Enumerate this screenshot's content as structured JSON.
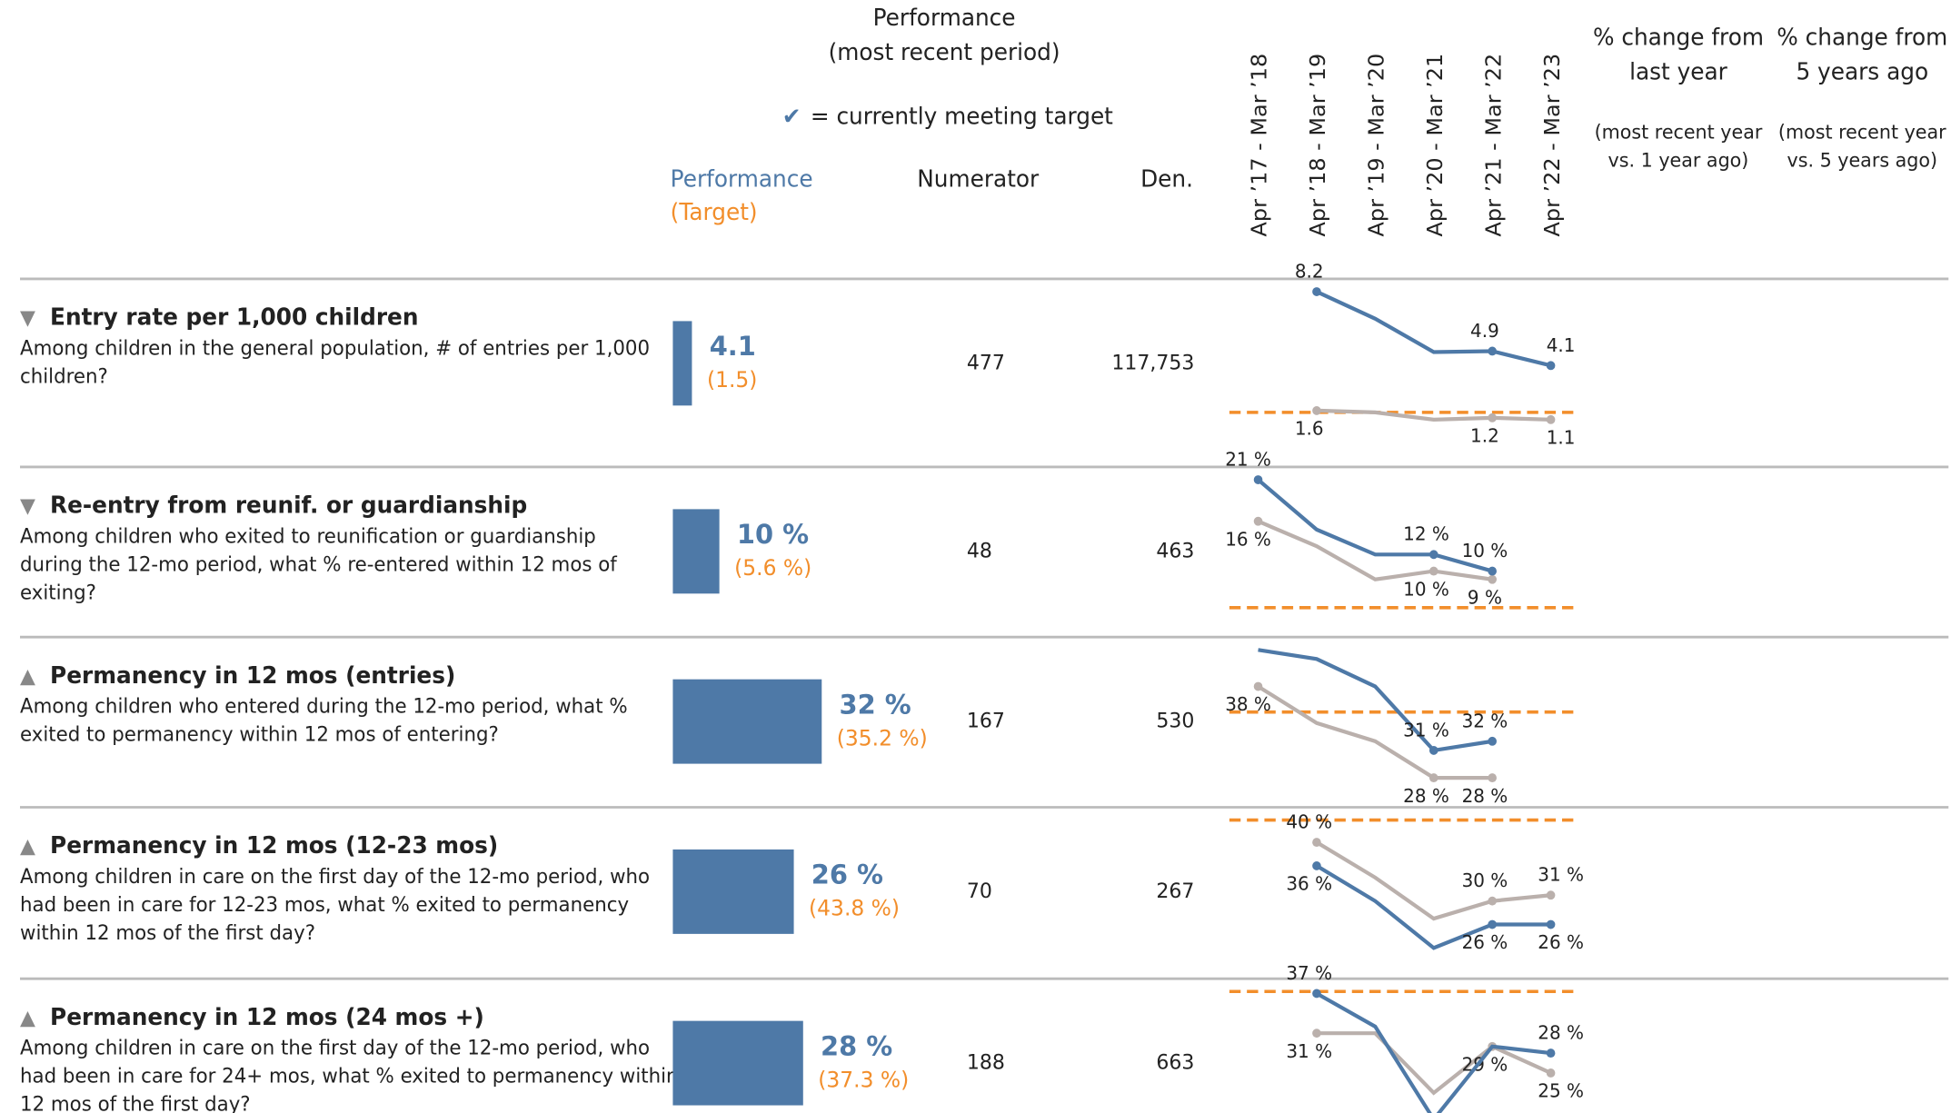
{
  "header": {
    "performance_header": [
      "Performance",
      "(most recent period)"
    ],
    "check_mark": "✔",
    "check_legend": "= currently meeting target",
    "col_performance": "Performance",
    "col_target": "(Target)",
    "col_numerator": "Numerator",
    "col_denominator": "Den.",
    "periods": [
      "Apr ’17 - Mar ’18",
      "Apr ’18 - Mar ’19",
      "Apr ’19 - Mar ’20",
      "Apr ’20 - Mar ’21",
      "Apr ’21 - Mar ’22",
      "Apr ’22 - Mar ’23"
    ],
    "change_last_year": [
      "% change from",
      "last year"
    ],
    "change_last_year_note": [
      "(most recent year",
      "vs. 1 year ago)"
    ],
    "change_5yr": [
      "% change from",
      "5 years ago"
    ],
    "change_5yr_note": [
      "(most recent year",
      "vs. 5 years ago)"
    ]
  },
  "colors": {
    "performance": "#4e79a7",
    "target": "#f28e2b",
    "comparison": "#bab0ac"
  },
  "rows": [
    {
      "direction": "▼",
      "title": "Entry rate per 1,000 children",
      "description": [
        "Among children in the general population, # of entries per 1,000",
        "children?"
      ],
      "performance": 4.1,
      "target": {
        "value": 1.5,
        "label": "(1.5)"
      },
      "numerator": 477,
      "denominator": {
        "value": 117753,
        "label": "117,753"
      },
      "trend": [
        {
          "values": [
            null,
            8.2,
            6.7,
            4.85,
            4.9,
            4.1
          ],
          "value_labels": [
            null,
            "8.2",
            null,
            null,
            "4.9",
            "4.1"
          ]
        },
        {
          "values": [
            null,
            1.6,
            1.5,
            1.1,
            1.2,
            1.1
          ],
          "value_labels": [
            null,
            "1.6",
            null,
            null,
            "1.2",
            "1.1"
          ]
        }
      ]
    },
    {
      "direction": "▼",
      "title": "Re-entry from reunif. or guardianship",
      "description": [
        "Among children who exited to reunification or guardianship",
        "during the 12-mo period, what % re-entered within 12 mos of",
        "exiting?"
      ],
      "performance": {
        "value": 10,
        "label": "10 %"
      },
      "target": {
        "value": 5.6,
        "label": "(5.6 %)"
      },
      "numerator": 48,
      "denominator": 463,
      "trend": [
        {
          "values": [
            21,
            15,
            12,
            12,
            10,
            null
          ],
          "value_labels": [
            "21 %",
            null,
            null,
            "12 %",
            "10 %",
            null
          ]
        },
        {
          "values": [
            16,
            13,
            9,
            10,
            9,
            null
          ],
          "value_labels": [
            "16 %",
            null,
            null,
            "10 %",
            "9 %",
            null
          ]
        }
      ]
    },
    {
      "direction": "▲",
      "title": "Permanency in 12 mos (entries)",
      "description": [
        "Among children who entered during the 12-mo period, what %",
        "exited to permanency within 12 mos of entering?"
      ],
      "performance": {
        "value": 32,
        "label": "32 %"
      },
      "target": {
        "value": 35.2,
        "label": "(35.2 %)"
      },
      "numerator": 167,
      "denominator": 530,
      "trend": [
        {
          "values": [
            42,
            41,
            38,
            31,
            32,
            null
          ],
          "value_labels": [
            null,
            null,
            null,
            "31 %",
            "32 %",
            null
          ]
        },
        {
          "values": [
            38,
            34,
            32,
            28,
            28,
            null
          ],
          "value_labels": [
            "38 %",
            null,
            null,
            "28 %",
            "28 %",
            null
          ]
        }
      ]
    },
    {
      "direction": "▲",
      "title": "Permanency in 12 mos (12-23 mos)",
      "description": [
        "Among children in care on the first day of the 12-mo period, who",
        "had been in care for 12-23 mos, what % exited to permanency",
        "within 12 mos of the first day?"
      ],
      "performance": {
        "value": 26,
        "label": "26 %"
      },
      "target": {
        "value": 43.8,
        "label": "(43.8 %)"
      },
      "numerator": 70,
      "denominator": 267,
      "trend": [
        {
          "values": [
            null,
            36,
            30,
            22,
            26,
            26
          ],
          "value_labels": [
            null,
            "36 %",
            null,
            null,
            "26 %",
            "26 %"
          ]
        },
        {
          "values": [
            null,
            40,
            34,
            27,
            30,
            31
          ],
          "value_labels": [
            null,
            "40 %",
            null,
            null,
            "30 %",
            "31 %"
          ]
        }
      ]
    },
    {
      "direction": "▲",
      "title": "Permanency in 12 mos (24 mos +)",
      "description": [
        "Among children in care on the first day of the 12-mo period, who",
        "had been in care for 24+ mos, what % exited to permanency within",
        "12 mos of the first day?"
      ],
      "performance": {
        "value": 28,
        "label": "28 %"
      },
      "target": {
        "value": 37.3,
        "label": "(37.3 %)"
      },
      "numerator": 188,
      "denominator": 663,
      "trend": [
        {
          "values": [
            null,
            37,
            32,
            18,
            29,
            28
          ],
          "value_labels": [
            null,
            "37 %",
            null,
            null,
            null,
            "28 %"
          ]
        },
        {
          "values": [
            null,
            31,
            31,
            22,
            29,
            25
          ],
          "value_labels": [
            null,
            "31 %",
            null,
            null,
            "29 %",
            "25 %"
          ]
        }
      ]
    }
  ]
}
